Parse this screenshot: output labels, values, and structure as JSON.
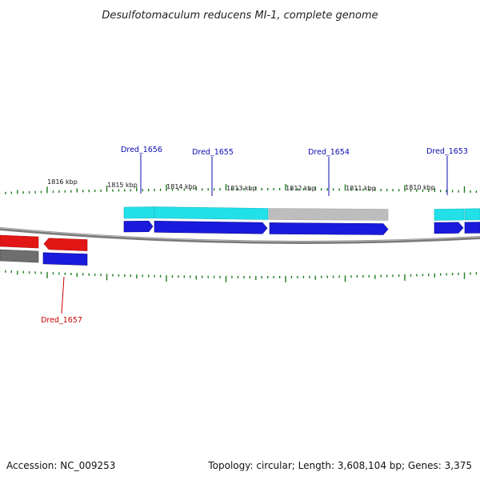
{
  "title": "Desulfotomaculum reducens MI-1, complete genome",
  "footer": {
    "accession": "Accession: NC_009253",
    "summary": "Topology: circular; Length: 3,608,104 bp; Genes: 3,375"
  },
  "colors": {
    "tick": "#1e7b1e",
    "backbone": "#7a7a7a",
    "cds_forward": "#1a1adc",
    "gene_forward": "#22e0e8",
    "gene_forward_pseudo": "#bdbdbd",
    "cds_reverse": "#e31616",
    "gene_reverse": "#6e6e6e",
    "label_forward": "#0b0bb0",
    "label_reverse": "#cc0000"
  },
  "kbp_labels": [
    "1816 kbp",
    "1815 kbp",
    "1814 kbp",
    "1813 kbp",
    "1812 kbp",
    "1811 kbp",
    "1810 kbp"
  ],
  "genes": [
    {
      "id": "Dred_1656",
      "strand": "forward"
    },
    {
      "id": "Dred_1655",
      "strand": "forward"
    },
    {
      "id": "Dred_1654",
      "strand": "forward",
      "pseudo": true
    },
    {
      "id": "Dred_1653",
      "strand": "forward"
    },
    {
      "id": "Dred_1657",
      "strand": "reverse"
    }
  ]
}
